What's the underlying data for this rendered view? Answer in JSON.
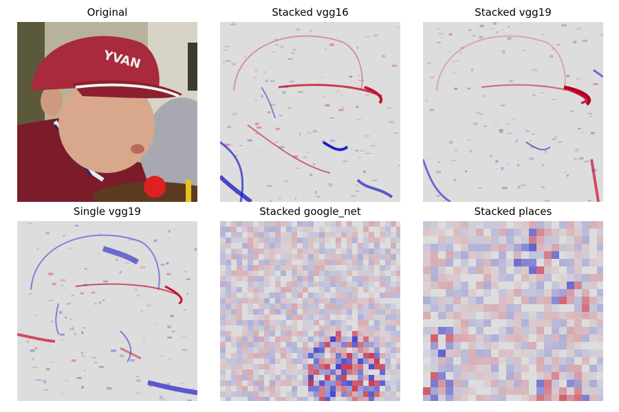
{
  "panels": [
    {
      "title": "Original",
      "kind": "photo"
    },
    {
      "title": "Stacked vgg16",
      "kind": "saliency-fine",
      "seed": 11
    },
    {
      "title": "Stacked vgg19",
      "kind": "saliency-fine",
      "seed": 23
    },
    {
      "title": "Single vgg19",
      "kind": "saliency-fine",
      "seed": 37
    },
    {
      "title": "Stacked google_net",
      "kind": "saliency-grid",
      "seed": 53
    },
    {
      "title": "Stacked places",
      "kind": "saliency-coarse",
      "seed": 71
    }
  ],
  "colors": {
    "positive": "#c8102e",
    "negative": "#1f1fc8",
    "neutral": "#dddddd"
  }
}
